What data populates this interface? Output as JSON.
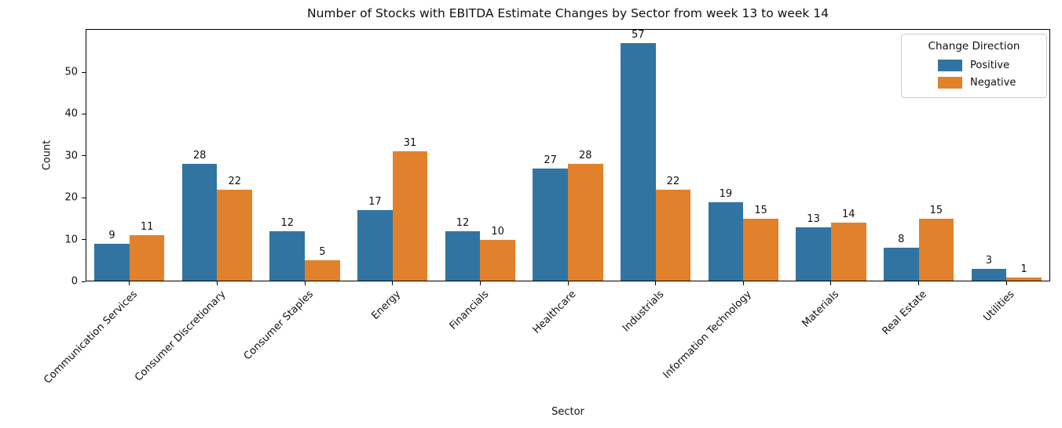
{
  "chart_data": {
    "type": "bar",
    "title": "Number of Stocks with EBITDA Estimate Changes by Sector from week 13 to week 14",
    "xlabel": "Sector",
    "ylabel": "Count",
    "categories": [
      "Communication Services",
      "Consumer Discretionary",
      "Consumer Staples",
      "Energy",
      "Financials",
      "Healthcare",
      "Industrials",
      "Information Technology",
      "Materials",
      "Real Estate",
      "Utilities"
    ],
    "series": [
      {
        "name": "Positive",
        "color": "#3274a1",
        "values": [
          9,
          28,
          12,
          17,
          12,
          27,
          57,
          19,
          13,
          8,
          3
        ]
      },
      {
        "name": "Negative",
        "color": "#e1812c",
        "values": [
          11,
          22,
          5,
          31,
          10,
          28,
          22,
          15,
          14,
          15,
          1
        ]
      }
    ],
    "legend_title": "Change Direction",
    "legend_position": "upper right",
    "y_ticks": [
      0,
      10,
      20,
      30,
      40,
      50
    ],
    "ylim": [
      0,
      60.3
    ],
    "grid": false,
    "bar_labels_shown": true
  }
}
